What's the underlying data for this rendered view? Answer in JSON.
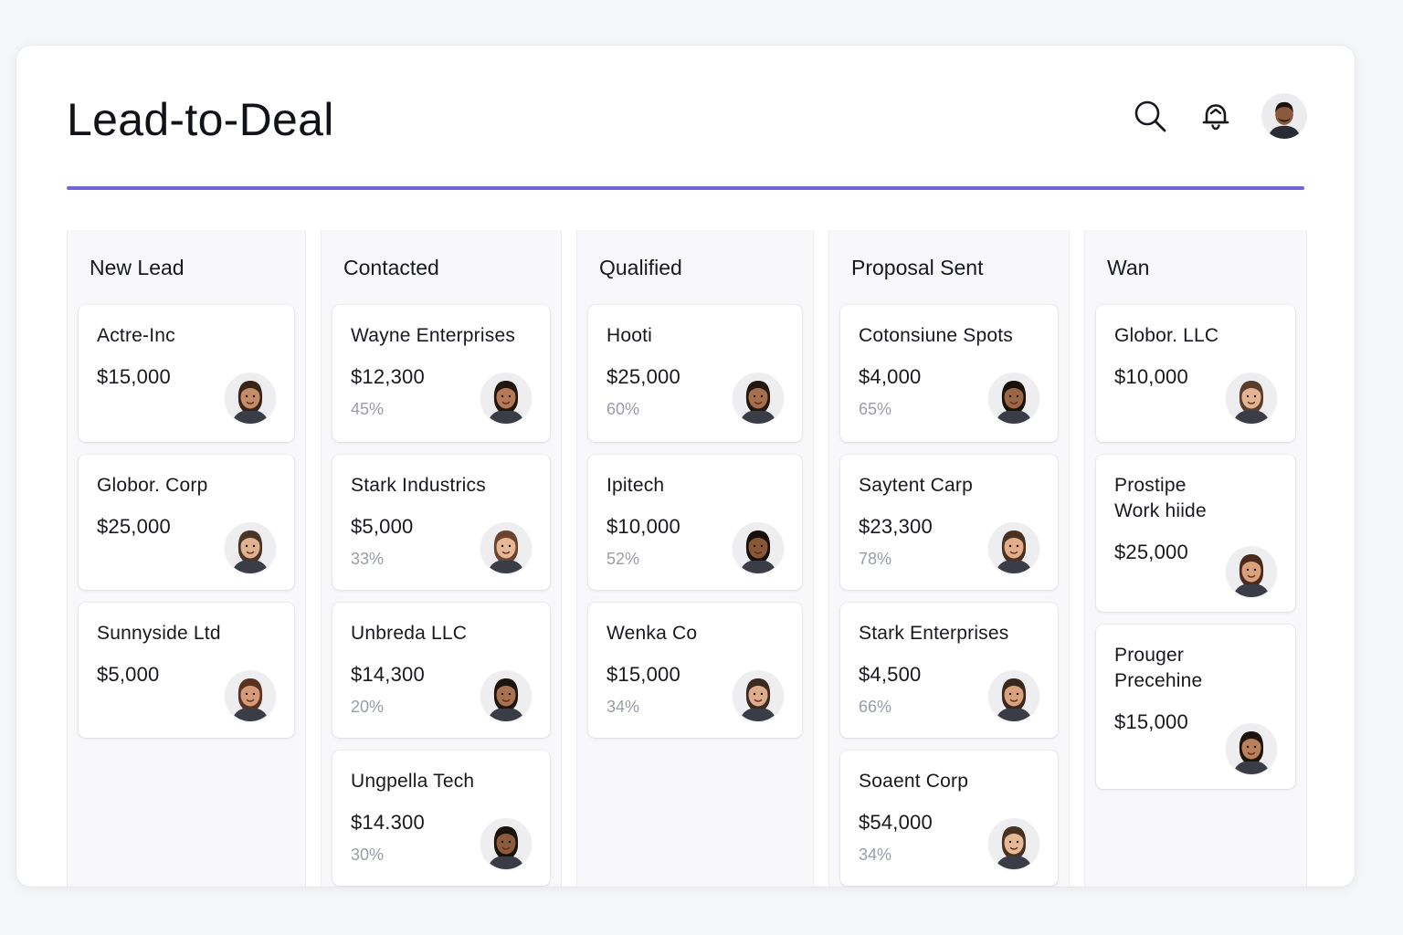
{
  "header": {
    "title": "Lead-to-Deal",
    "search_icon": "search-icon",
    "notification_icon": "bell-icon",
    "user_avatar": "user-avatar"
  },
  "colors": {
    "accent": "#7465d6",
    "percent_text": "#9a9da6"
  },
  "columns": [
    {
      "title": "New Lead",
      "cards": [
        {
          "name": "Actre-Inc",
          "amount": "$15,000",
          "percent": "",
          "skin": "#c58c6a",
          "hair": "#3a2418"
        },
        {
          "name": "Globor. Corp",
          "amount": "$25,000",
          "percent": "",
          "skin": "#e0b291",
          "hair": "#4a3426"
        },
        {
          "name": "Sunnyside Ltd",
          "amount": "$5,000",
          "percent": "",
          "skin": "#d59b78",
          "hair": "#5a3222"
        }
      ]
    },
    {
      "title": "Contacted",
      "cards": [
        {
          "name": "Wayne Enterprises",
          "amount": "$12,300",
          "percent": "45%",
          "skin": "#b57a55",
          "hair": "#22160f"
        },
        {
          "name": "Stark Industrics",
          "amount": "$5,000",
          "percent": "33%",
          "skin": "#e6b896",
          "hair": "#6b4330"
        },
        {
          "name": "Unbreda LLC",
          "amount": "$14,300",
          "percent": "20%",
          "skin": "#a8714f",
          "hair": "#1d140e"
        },
        {
          "name": "Ungpella Tech",
          "amount": "$14.300",
          "percent": "30%",
          "skin": "#8c5a3c",
          "hair": "#1a120c"
        }
      ]
    },
    {
      "title": "Qualified",
      "cards": [
        {
          "name": "Hooti",
          "amount": "$25,000",
          "percent": "60%",
          "skin": "#a66e4c",
          "hair": "#24170f"
        },
        {
          "name": "Ipitech",
          "amount": "$10,000",
          "percent": "52%",
          "skin": "#8a5636",
          "hair": "#18100a"
        },
        {
          "name": "Wenka Co",
          "amount": "$15,000",
          "percent": "34%",
          "skin": "#deac8a",
          "hair": "#3c2a1e"
        }
      ]
    },
    {
      "title": "Proposal Sent",
      "cards": [
        {
          "name": "Cotonsiune Spots",
          "amount": "$4,000",
          "percent": "65%",
          "skin": "#9a6646",
          "hair": "#1a110b"
        },
        {
          "name": "Saytent Carp",
          "amount": "$23,300",
          "percent": "78%",
          "skin": "#e2ad88",
          "hair": "#4a3020"
        },
        {
          "name": "Stark Enterprises",
          "amount": "$4,500",
          "percent": "66%",
          "skin": "#d9a27c",
          "hair": "#3a281c"
        },
        {
          "name": "Soaent Corp",
          "amount": "$54,000",
          "percent": "34%",
          "skin": "#e6b894",
          "hair": "#4a3222"
        }
      ]
    },
    {
      "title": "Wan",
      "cards": [
        {
          "name": "Globor. LLC",
          "amount": "$10,000",
          "percent": "",
          "skin": "#e4b492",
          "hair": "#5a3d2a"
        },
        {
          "name": "Prostipe\nWork hiide",
          "amount": "$25,000",
          "percent": "",
          "skin": "#d9a07c",
          "hair": "#4a2a1a"
        },
        {
          "name": "Prouger\nPrecehine",
          "amount": "$15,000",
          "percent": "",
          "skin": "#b9805a",
          "hair": "#1f140d"
        }
      ]
    }
  ]
}
